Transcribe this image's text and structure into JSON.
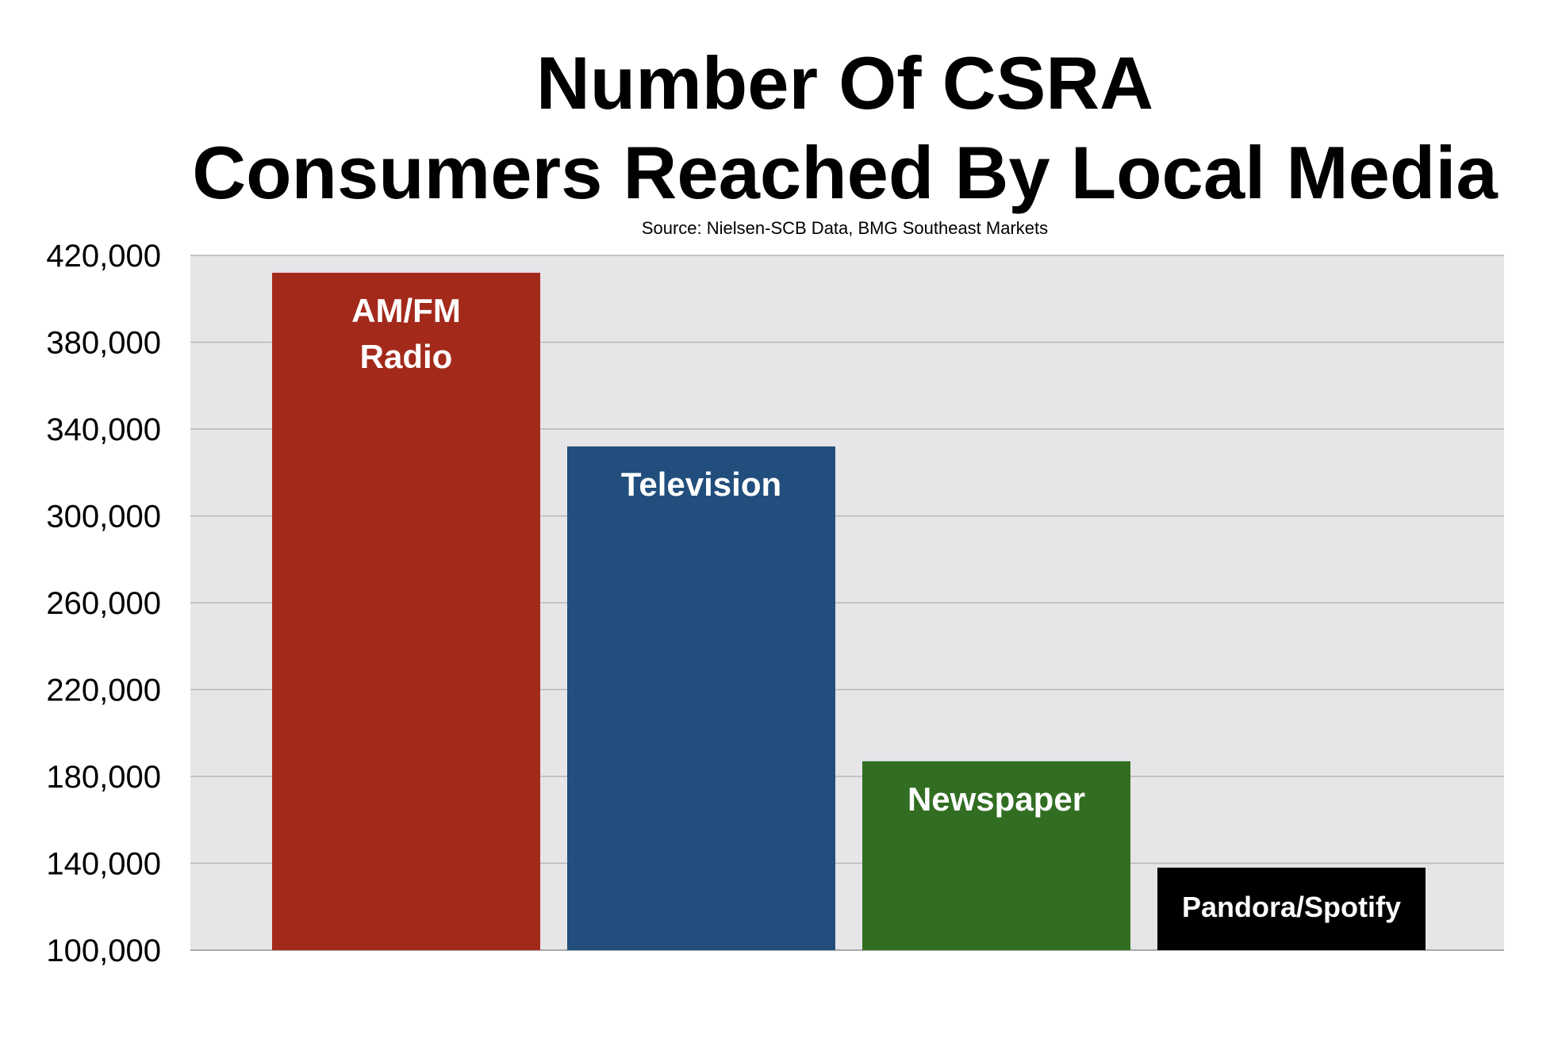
{
  "chart_data": {
    "type": "bar",
    "title_lines": [
      "Number Of CSRA",
      "Consumers Reached By Local Media"
    ],
    "subtitle": "Source: Nielsen-SCB Data, BMG Southeast Markets",
    "categories": [
      "AM/FM Radio",
      "Television",
      "Newspaper",
      "Pandora/Spotify"
    ],
    "bar_label_lines": [
      [
        "AM/FM",
        "Radio"
      ],
      [
        "Television"
      ],
      [
        "Newspaper"
      ],
      [
        "Pandora/Spotify"
      ]
    ],
    "values": [
      412000,
      332000,
      187000,
      138000
    ],
    "colors": [
      "#a32a1b",
      "#214e7c",
      "#326e22",
      "#000000"
    ],
    "ylim": [
      100000,
      420000
    ],
    "yticks": [
      100000,
      140000,
      180000,
      220000,
      260000,
      300000,
      340000,
      380000,
      420000
    ],
    "ytick_labels": [
      "100,000",
      "140,000",
      "180,000",
      "220,000",
      "260,000",
      "300,000",
      "340,000",
      "380,000",
      "420,000"
    ],
    "xlabel": "",
    "ylabel": "",
    "grid": true,
    "legend": "none",
    "plot_background": "#e6e5e8",
    "grid_color": "#b7b7b9"
  }
}
